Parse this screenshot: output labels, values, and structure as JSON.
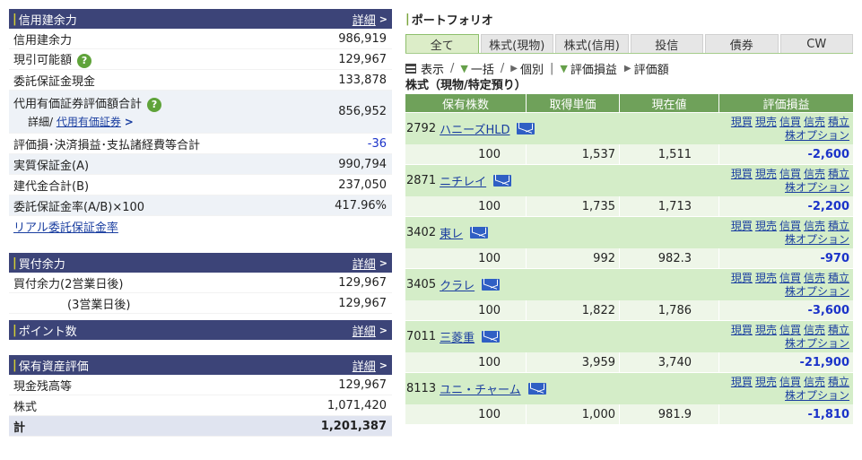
{
  "credit": {
    "title": "信用建余力",
    "detail": "詳細",
    "rows": [
      {
        "label": "信用建余力",
        "value": "986,919"
      },
      {
        "label": "現引可能額",
        "value": "129,967"
      },
      {
        "label": "委託保証金現金",
        "value": "133,878"
      },
      {
        "label": "代用有価証券評価額合計",
        "value": "856,952",
        "sub_prefix": "詳細/ ",
        "sub_link": "代用有価証券"
      },
      {
        "label": "評価損･決済損益･支払諸経費等合計",
        "value": "-36"
      },
      {
        "label": "実質保証金(A)",
        "value": "990,794"
      },
      {
        "label": "建代金合計(B)",
        "value": "237,050"
      },
      {
        "label": "委託保証金率(A/B)×100",
        "value": "417.96%"
      }
    ],
    "real_link": "リアル委託保証金率"
  },
  "buying": {
    "title": "買付余力",
    "detail": "詳細",
    "rows": [
      {
        "label": "買付余力(2営業日後)",
        "value": "129,967"
      },
      {
        "label": "(3営業日後)",
        "value": "129,967"
      }
    ]
  },
  "points": {
    "title": "ポイント数",
    "detail": "詳細"
  },
  "assets": {
    "title": "保有資産評価",
    "detail": "詳細",
    "rows": [
      {
        "label": "現金残高等",
        "value": "129,967"
      },
      {
        "label": "株式",
        "value": "1,071,420"
      },
      {
        "label": "計",
        "value": "1,201,387"
      }
    ]
  },
  "portfolio": {
    "title": "ポートフォリオ",
    "tabs": [
      "全て",
      "株式(現物)",
      "株式(信用)",
      "投信",
      "債券",
      "CW"
    ],
    "toolbar": {
      "display": "表示",
      "sep1": "/",
      "all": "一括",
      "sep2": "/",
      "single": "個別",
      "sep3": "|",
      "pnl": "評価損益",
      "value": "評価額"
    },
    "section": "株式（現物/特定預り）",
    "columns": [
      "保有株数",
      "取得単価",
      "現在値",
      "評価損益"
    ],
    "links": {
      "buy": "現買",
      "sell": "現売",
      "mbuy": "信買",
      "msell": "信売",
      "accum": "積立",
      "option": "株オプション"
    },
    "stocks": [
      {
        "code": "2792",
        "name": "ハニーズHLD",
        "qty": "100",
        "cost": "1,537",
        "price": "1,511",
        "pnl": "-2,600"
      },
      {
        "code": "2871",
        "name": "ニチレイ",
        "qty": "100",
        "cost": "1,735",
        "price": "1,713",
        "pnl": "-2,200"
      },
      {
        "code": "3402",
        "name": "東レ",
        "qty": "100",
        "cost": "992",
        "price": "982.3",
        "pnl": "-970"
      },
      {
        "code": "3405",
        "name": "クラレ",
        "qty": "100",
        "cost": "1,822",
        "price": "1,786",
        "pnl": "-3,600"
      },
      {
        "code": "7011",
        "name": "三菱重",
        "qty": "100",
        "cost": "3,959",
        "price": "3,740",
        "pnl": "-21,900"
      },
      {
        "code": "8113",
        "name": "ユニ・チャーム",
        "qty": "100",
        "cost": "1,000",
        "price": "981.9",
        "pnl": "-1,810"
      }
    ]
  }
}
